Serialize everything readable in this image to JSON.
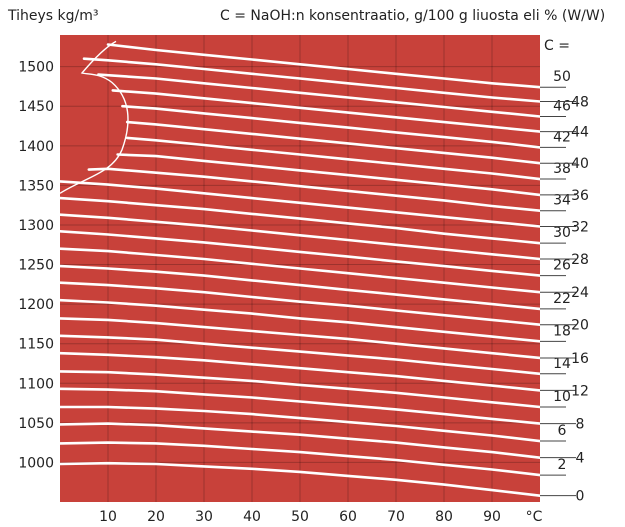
{
  "header": {
    "density_label": "Tiheys kg/m³",
    "concentration_caption": "C = NaOH:n konsentraatio, g/100 g liuosta eli % (W/W)",
    "c_label": "C ="
  },
  "colors": {
    "plot_bg": "#c8413a",
    "lines": "#ffffff",
    "text": "#222222"
  },
  "chart_data": {
    "type": "line",
    "title": "",
    "xlabel": "°C",
    "ylabel": "Tiheys kg/m³",
    "xlim": [
      0,
      100
    ],
    "ylim": [
      950,
      1540
    ],
    "x_ticks": [
      10,
      20,
      30,
      40,
      50,
      60,
      70,
      80,
      90
    ],
    "x_unit_label": "°C",
    "y_ticks": [
      1000,
      1050,
      1100,
      1150,
      1200,
      1250,
      1300,
      1350,
      1400,
      1450,
      1500
    ],
    "grid": true,
    "series_label_key": "C = NaOH:n konsentraatio, g/100 g liuosta eli % (W/W)",
    "series": [
      {
        "name": "0",
        "points": [
          [
            0,
            998
          ],
          [
            10,
            999
          ],
          [
            20,
            998
          ],
          [
            30,
            995
          ],
          [
            40,
            992
          ],
          [
            50,
            988
          ],
          [
            60,
            983
          ],
          [
            70,
            978
          ],
          [
            80,
            972
          ],
          [
            90,
            965
          ],
          [
            100,
            958
          ]
        ]
      },
      {
        "name": "2",
        "points": [
          [
            0,
            1024
          ],
          [
            10,
            1025
          ],
          [
            20,
            1024
          ],
          [
            30,
            1021
          ],
          [
            40,
            1017
          ],
          [
            50,
            1013
          ],
          [
            60,
            1008
          ],
          [
            70,
            1003
          ],
          [
            80,
            997
          ],
          [
            90,
            991
          ],
          [
            100,
            984
          ]
        ]
      },
      {
        "name": "4",
        "points": [
          [
            0,
            1048
          ],
          [
            10,
            1049
          ],
          [
            20,
            1047
          ],
          [
            30,
            1043
          ],
          [
            40,
            1039
          ],
          [
            50,
            1035
          ],
          [
            60,
            1030
          ],
          [
            70,
            1025
          ],
          [
            80,
            1019
          ],
          [
            90,
            1013
          ],
          [
            100,
            1006
          ]
        ]
      },
      {
        "name": "6",
        "points": [
          [
            0,
            1070
          ],
          [
            10,
            1070
          ],
          [
            20,
            1068
          ],
          [
            30,
            1065
          ],
          [
            40,
            1061
          ],
          [
            50,
            1056
          ],
          [
            60,
            1051
          ],
          [
            70,
            1046
          ],
          [
            80,
            1040
          ],
          [
            90,
            1034
          ],
          [
            100,
            1027
          ]
        ]
      },
      {
        "name": "8",
        "points": [
          [
            0,
            1093
          ],
          [
            10,
            1092
          ],
          [
            20,
            1090
          ],
          [
            30,
            1086
          ],
          [
            40,
            1082
          ],
          [
            50,
            1077
          ],
          [
            60,
            1072
          ],
          [
            70,
            1067
          ],
          [
            80,
            1061
          ],
          [
            90,
            1055
          ],
          [
            100,
            1049
          ]
        ]
      },
      {
        "name": "10",
        "points": [
          [
            0,
            1115
          ],
          [
            10,
            1114
          ],
          [
            20,
            1111
          ],
          [
            30,
            1107
          ],
          [
            40,
            1103
          ],
          [
            50,
            1098
          ],
          [
            60,
            1093
          ],
          [
            70,
            1088
          ],
          [
            80,
            1082
          ],
          [
            90,
            1076
          ],
          [
            100,
            1070
          ]
        ]
      },
      {
        "name": "12",
        "points": [
          [
            0,
            1138
          ],
          [
            10,
            1136
          ],
          [
            20,
            1133
          ],
          [
            30,
            1129
          ],
          [
            40,
            1124
          ],
          [
            50,
            1119
          ],
          [
            60,
            1114
          ],
          [
            70,
            1109
          ],
          [
            80,
            1103
          ],
          [
            90,
            1097
          ],
          [
            100,
            1091
          ]
        ]
      },
      {
        "name": "14",
        "points": [
          [
            0,
            1160
          ],
          [
            10,
            1158
          ],
          [
            20,
            1155
          ],
          [
            30,
            1150
          ],
          [
            40,
            1145
          ],
          [
            50,
            1140
          ],
          [
            60,
            1135
          ],
          [
            70,
            1130
          ],
          [
            80,
            1124
          ],
          [
            90,
            1118
          ],
          [
            100,
            1112
          ]
        ]
      },
      {
        "name": "16",
        "points": [
          [
            0,
            1182
          ],
          [
            10,
            1180
          ],
          [
            20,
            1176
          ],
          [
            30,
            1171
          ],
          [
            40,
            1166
          ],
          [
            50,
            1161
          ],
          [
            60,
            1156
          ],
          [
            70,
            1150
          ],
          [
            80,
            1144
          ],
          [
            90,
            1138
          ],
          [
            100,
            1132
          ]
        ]
      },
      {
        "name": "18",
        "points": [
          [
            0,
            1205
          ],
          [
            10,
            1202
          ],
          [
            20,
            1198
          ],
          [
            30,
            1193
          ],
          [
            40,
            1188
          ],
          [
            50,
            1182
          ],
          [
            60,
            1177
          ],
          [
            70,
            1171
          ],
          [
            80,
            1165
          ],
          [
            90,
            1159
          ],
          [
            100,
            1153
          ]
        ]
      },
      {
        "name": "20",
        "points": [
          [
            0,
            1227
          ],
          [
            10,
            1224
          ],
          [
            20,
            1220
          ],
          [
            30,
            1215
          ],
          [
            40,
            1209
          ],
          [
            50,
            1203
          ],
          [
            60,
            1198
          ],
          [
            70,
            1192
          ],
          [
            80,
            1186
          ],
          [
            90,
            1180
          ],
          [
            100,
            1174
          ]
        ]
      },
      {
        "name": "22",
        "points": [
          [
            0,
            1248
          ],
          [
            10,
            1245
          ],
          [
            20,
            1241
          ],
          [
            30,
            1236
          ],
          [
            40,
            1230
          ],
          [
            50,
            1224
          ],
          [
            60,
            1218
          ],
          [
            70,
            1212
          ],
          [
            80,
            1206
          ],
          [
            90,
            1200
          ],
          [
            100,
            1194
          ]
        ]
      },
      {
        "name": "24",
        "points": [
          [
            0,
            1270
          ],
          [
            10,
            1267
          ],
          [
            20,
            1262
          ],
          [
            30,
            1257
          ],
          [
            40,
            1251
          ],
          [
            50,
            1245
          ],
          [
            60,
            1239
          ],
          [
            70,
            1233
          ],
          [
            80,
            1227
          ],
          [
            90,
            1221
          ],
          [
            100,
            1215
          ]
        ]
      },
      {
        "name": "26",
        "points": [
          [
            0,
            1292
          ],
          [
            10,
            1288
          ],
          [
            20,
            1283
          ],
          [
            30,
            1278
          ],
          [
            40,
            1272
          ],
          [
            50,
            1266
          ],
          [
            60,
            1260
          ],
          [
            70,
            1254
          ],
          [
            80,
            1248
          ],
          [
            90,
            1242
          ],
          [
            100,
            1236
          ]
        ]
      },
      {
        "name": "28",
        "points": [
          [
            0,
            1313
          ],
          [
            10,
            1309
          ],
          [
            20,
            1304
          ],
          [
            30,
            1299
          ],
          [
            40,
            1293
          ],
          [
            50,
            1287
          ],
          [
            60,
            1281
          ],
          [
            70,
            1275
          ],
          [
            80,
            1269
          ],
          [
            90,
            1263
          ],
          [
            100,
            1257
          ]
        ]
      },
      {
        "name": "30",
        "points": [
          [
            0,
            1334
          ],
          [
            10,
            1330
          ],
          [
            20,
            1325
          ],
          [
            30,
            1320
          ],
          [
            40,
            1314
          ],
          [
            50,
            1308
          ],
          [
            60,
            1302
          ],
          [
            70,
            1296
          ],
          [
            80,
            1289
          ],
          [
            90,
            1283
          ],
          [
            100,
            1277
          ]
        ]
      },
      {
        "name": "32",
        "points": [
          [
            0,
            1355
          ],
          [
            10,
            1351
          ],
          [
            20,
            1346
          ],
          [
            30,
            1340
          ],
          [
            40,
            1334
          ],
          [
            50,
            1328
          ],
          [
            60,
            1322
          ],
          [
            70,
            1316
          ],
          [
            80,
            1310
          ],
          [
            90,
            1304
          ],
          [
            100,
            1298
          ]
        ]
      },
      {
        "name": "34",
        "points": [
          [
            6,
            1370
          ],
          [
            10,
            1371
          ],
          [
            20,
            1366
          ],
          [
            30,
            1361
          ],
          [
            40,
            1355
          ],
          [
            50,
            1349
          ],
          [
            60,
            1343
          ],
          [
            70,
            1337
          ],
          [
            80,
            1331
          ],
          [
            90,
            1324
          ],
          [
            100,
            1318
          ]
        ]
      },
      {
        "name": "36",
        "points": [
          [
            12,
            1389
          ],
          [
            20,
            1387
          ],
          [
            30,
            1381
          ],
          [
            40,
            1375
          ],
          [
            50,
            1369
          ],
          [
            60,
            1363
          ],
          [
            70,
            1357
          ],
          [
            80,
            1351
          ],
          [
            90,
            1345
          ],
          [
            100,
            1338
          ]
        ]
      },
      {
        "name": "38",
        "points": [
          [
            14,
            1410
          ],
          [
            20,
            1407
          ],
          [
            30,
            1401
          ],
          [
            40,
            1395
          ],
          [
            50,
            1389
          ],
          [
            60,
            1383
          ],
          [
            70,
            1377
          ],
          [
            80,
            1371
          ],
          [
            90,
            1365
          ],
          [
            100,
            1358
          ]
        ]
      },
      {
        "name": "40",
        "points": [
          [
            14,
            1430
          ],
          [
            20,
            1427
          ],
          [
            30,
            1421
          ],
          [
            40,
            1415
          ],
          [
            50,
            1409
          ],
          [
            60,
            1403
          ],
          [
            70,
            1397
          ],
          [
            80,
            1391
          ],
          [
            90,
            1385
          ],
          [
            100,
            1378
          ]
        ]
      },
      {
        "name": "42",
        "points": [
          [
            13,
            1450
          ],
          [
            20,
            1447
          ],
          [
            30,
            1441
          ],
          [
            40,
            1435
          ],
          [
            50,
            1429
          ],
          [
            60,
            1423
          ],
          [
            70,
            1417
          ],
          [
            80,
            1411
          ],
          [
            90,
            1405
          ],
          [
            100,
            1398
          ]
        ]
      },
      {
        "name": "44",
        "points": [
          [
            11,
            1470
          ],
          [
            20,
            1466
          ],
          [
            30,
            1460
          ],
          [
            40,
            1454
          ],
          [
            50,
            1448
          ],
          [
            60,
            1442
          ],
          [
            70,
            1436
          ],
          [
            80,
            1430
          ],
          [
            90,
            1424
          ],
          [
            100,
            1418
          ]
        ]
      },
      {
        "name": "46",
        "points": [
          [
            8,
            1490
          ],
          [
            20,
            1485
          ],
          [
            30,
            1479
          ],
          [
            40,
            1473
          ],
          [
            50,
            1467
          ],
          [
            60,
            1461
          ],
          [
            70,
            1455
          ],
          [
            80,
            1449
          ],
          [
            90,
            1443
          ],
          [
            100,
            1437
          ]
        ]
      },
      {
        "name": "48",
        "points": [
          [
            5,
            1510
          ],
          [
            10,
            1508
          ],
          [
            20,
            1503
          ],
          [
            30,
            1497
          ],
          [
            40,
            1491
          ],
          [
            50,
            1485
          ],
          [
            60,
            1479
          ],
          [
            70,
            1473
          ],
          [
            80,
            1467
          ],
          [
            90,
            1461
          ],
          [
            100,
            1456
          ]
        ]
      },
      {
        "name": "50",
        "points": [
          [
            10,
            1528
          ],
          [
            20,
            1521
          ],
          [
            30,
            1515
          ],
          [
            40,
            1509
          ],
          [
            50,
            1503
          ],
          [
            60,
            1497
          ],
          [
            70,
            1491
          ],
          [
            80,
            1485
          ],
          [
            90,
            1479
          ],
          [
            100,
            1474
          ]
        ]
      }
    ]
  }
}
